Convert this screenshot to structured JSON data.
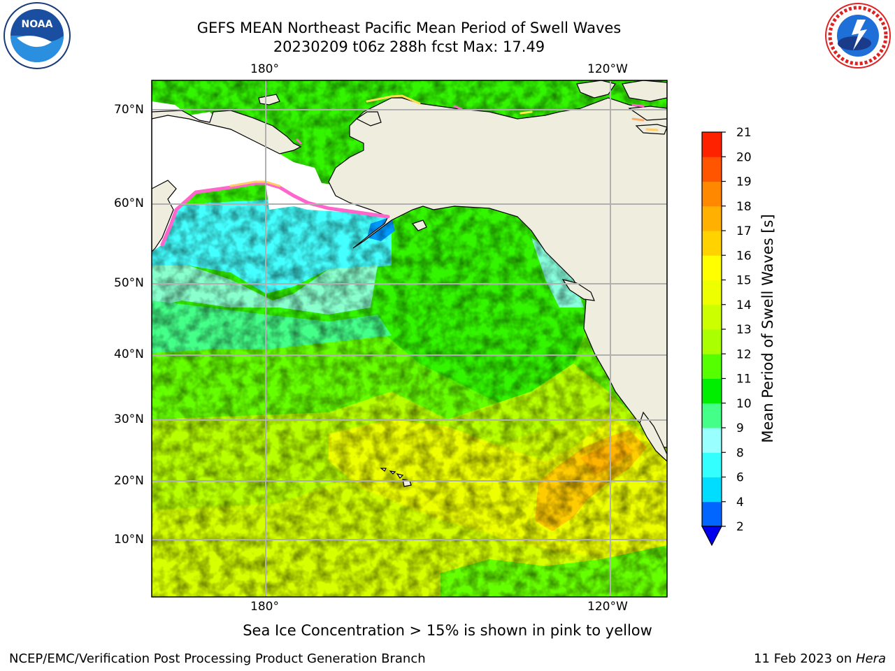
{
  "header": {
    "title_line1": "GEFS MEAN Northeast Pacific Mean Period of Swell Waves",
    "title_line2": "20230209 t06z 288h fcst   Max: 17.49"
  },
  "logos": {
    "left": "noaa-logo",
    "right": "nws-logo"
  },
  "map": {
    "top_lon_labels": [
      "180°",
      "120°W"
    ],
    "bottom_lon_labels": [
      "180°",
      "120°W"
    ],
    "lat_labels": [
      "70°N",
      "60°N",
      "50°N",
      "40°N",
      "30°N",
      "20°N",
      "10°N"
    ],
    "land_color": "#efedde",
    "ice_colors": [
      "#ff66cc",
      "#ffcc66",
      "#ffee44"
    ]
  },
  "colorbar": {
    "label": "Mean Period of Swell Waves [s]",
    "ticks": [
      "2",
      "4",
      "6",
      "8",
      "9",
      "10",
      "11",
      "12",
      "13",
      "14",
      "15",
      "16",
      "17",
      "18",
      "19",
      "20",
      "21"
    ],
    "colors": [
      "#0066ff",
      "#00ddff",
      "#33ffff",
      "#99ffff",
      "#44ff88",
      "#00ee00",
      "#55ff00",
      "#aaff00",
      "#ccff00",
      "#eeff00",
      "#ffff00",
      "#ffd200",
      "#ffb000",
      "#ff8800",
      "#ff5500",
      "#ff2200"
    ],
    "extend_color": "#0000ee"
  },
  "note": "Sea Ice Concentration > 15% is shown in pink to yellow",
  "footer": {
    "left": "NCEP/EMC/Verification Post Processing Product Generation Branch",
    "right_date": "11 Feb 2023 on ",
    "right_machine": "Hera"
  }
}
